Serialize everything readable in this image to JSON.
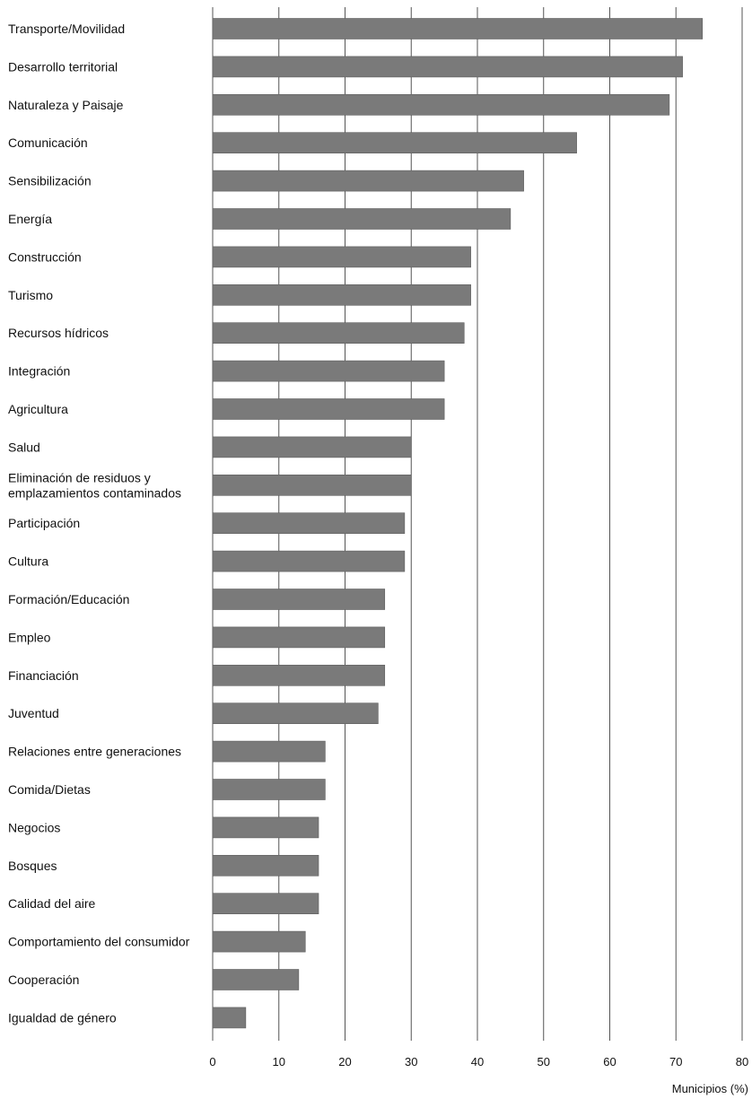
{
  "chart_data": {
    "type": "bar",
    "orientation": "horizontal",
    "categories": [
      [
        "Transporte/Movilidad"
      ],
      [
        "Desarrollo territorial"
      ],
      [
        "Naturaleza y Paisaje"
      ],
      [
        "Comunicación"
      ],
      [
        "Sensibilización"
      ],
      [
        "Energía"
      ],
      [
        "Construcción"
      ],
      [
        "Turismo"
      ],
      [
        "Recursos hídricos"
      ],
      [
        "Integración"
      ],
      [
        "Agricultura"
      ],
      [
        "Salud"
      ],
      [
        "Eliminación de residuos y",
        "emplazamientos contaminados"
      ],
      [
        "Participación"
      ],
      [
        "Cultura"
      ],
      [
        "Formación/Educación"
      ],
      [
        "Empleo"
      ],
      [
        "Financiación"
      ],
      [
        "Juventud"
      ],
      [
        "Relaciones entre generaciones"
      ],
      [
        "Comida/Dietas"
      ],
      [
        "Negocios"
      ],
      [
        "Bosques"
      ],
      [
        "Calidad del aire"
      ],
      [
        "Comportamiento del consumidor"
      ],
      [
        "Cooperación"
      ],
      [
        "Igualdad de género"
      ]
    ],
    "values": [
      74,
      71,
      69,
      55,
      47,
      45,
      39,
      39,
      38,
      35,
      35,
      30,
      30,
      29,
      29,
      26,
      26,
      26,
      25,
      17,
      17,
      16,
      16,
      16,
      14,
      13,
      5
    ],
    "xlim": [
      0,
      80
    ],
    "xticks": [
      "0",
      "10",
      "20",
      "30",
      "40",
      "50",
      "60",
      "70",
      "80"
    ],
    "xlabel": "Municipios (%)",
    "ylabel": "",
    "title": "",
    "grid": "vertical",
    "colors": {
      "bar": "#7a7a7a",
      "grid": "#555555",
      "text": "#111111"
    }
  }
}
